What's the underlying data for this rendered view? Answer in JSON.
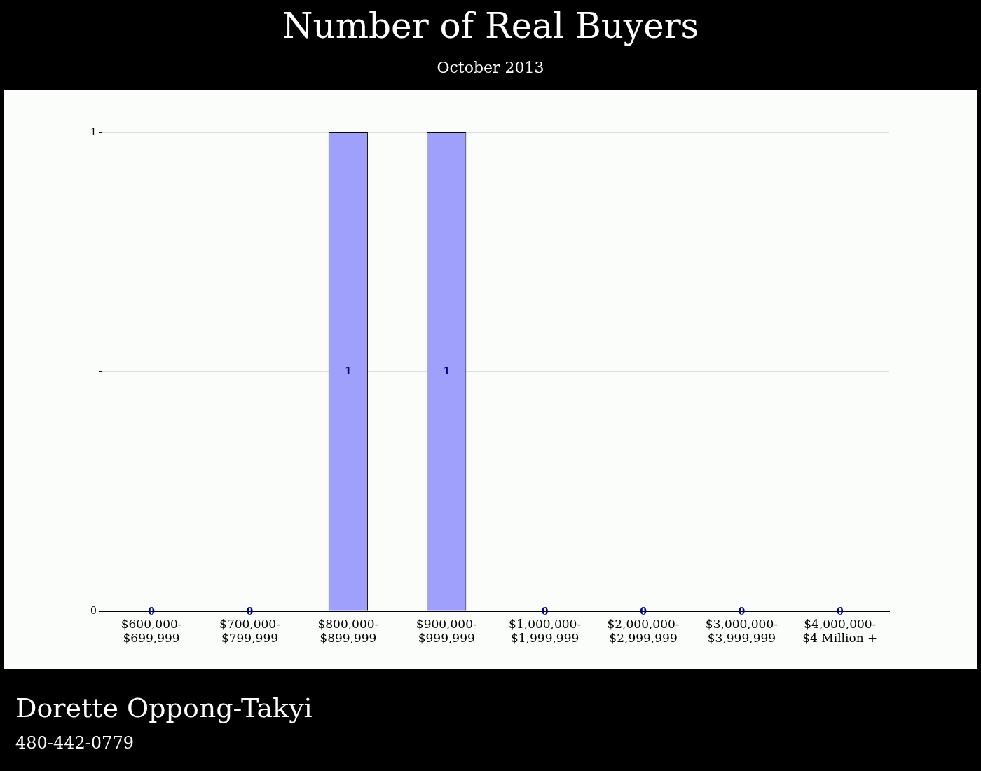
{
  "chart_data": {
    "type": "bar",
    "title": "Number of Real Buyers",
    "subtitle": "October 2013",
    "categories": [
      "$600,000-\n$699,999",
      "$700,000-\n$799,999",
      "$800,000-\n$899,999",
      "$900,000-\n$999,999",
      "$1,000,000-\n$1,999,999",
      "$2,000,000-\n$2,999,999",
      "$3,000,000-\n$3,999,999",
      "$4,000,000-\n$4 Million +"
    ],
    "values": [
      0,
      0,
      1,
      1,
      0,
      0,
      0,
      0
    ],
    "color": "#9f9ffc",
    "ylim": [
      0,
      1
    ],
    "yticks": [
      0,
      {
        "value": 0.5,
        "label": null
      },
      1
    ],
    "grid": "y",
    "data_labels": true,
    "annotations": [
      "Dorette Oppong-Takyi",
      "480-442-0779"
    ]
  }
}
